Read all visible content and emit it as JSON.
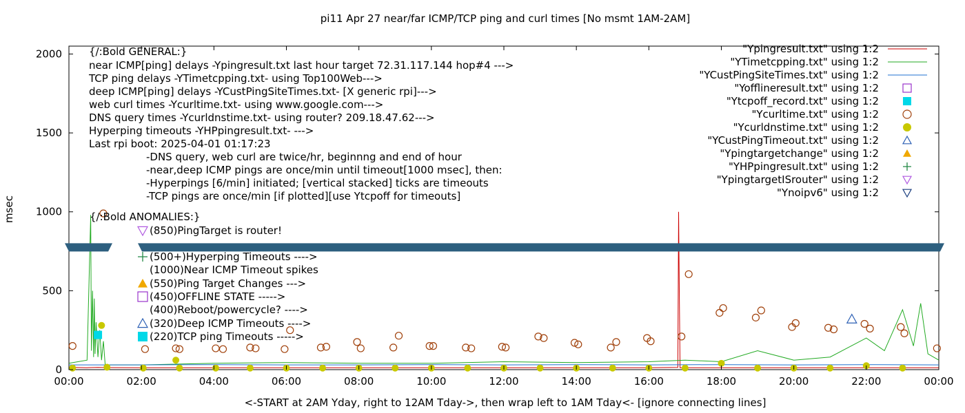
{
  "chart_data": {
    "type": "line",
    "title": "pi11 Apr 27  near/far ICMP/TCP ping and curl times [No msmt 1AM-2AM]",
    "xlabel": "<-START at 2AM Yday, right to 12AM Tday->, then wrap left to 1AM Tday<- [ignore connecting lines]",
    "ylabel": "msec",
    "xlim": [
      0,
      24
    ],
    "ylim": [
      0,
      2050
    ],
    "xticks": [
      {
        "v": 0,
        "label": "00:00"
      },
      {
        "v": 2,
        "label": "02:00"
      },
      {
        "v": 4,
        "label": "04:00"
      },
      {
        "v": 6,
        "label": "06:00"
      },
      {
        "v": 8,
        "label": "08:00"
      },
      {
        "v": 10,
        "label": "10:00"
      },
      {
        "v": 12,
        "label": "12:00"
      },
      {
        "v": 14,
        "label": "14:00"
      },
      {
        "v": 16,
        "label": "16:00"
      },
      {
        "v": 18,
        "label": "18:00"
      },
      {
        "v": 20,
        "label": "20:00"
      },
      {
        "v": 22,
        "label": "22:00"
      },
      {
        "v": 24,
        "label": "00:00"
      }
    ],
    "yticks": [
      {
        "v": 0,
        "label": "0"
      },
      {
        "v": 500,
        "label": "500"
      },
      {
        "v": 1000,
        "label": "1000"
      },
      {
        "v": 1500,
        "label": "1500"
      },
      {
        "v": 2000,
        "label": "2000"
      }
    ],
    "legend_position": "top-right",
    "legend": [
      {
        "label": "\"Ypingresult.txt\" using 1:2",
        "kind": "line",
        "color": "#cc0000"
      },
      {
        "label": "\"YTimetcpping.txt\" using 1:2",
        "kind": "line",
        "color": "#22aa22"
      },
      {
        "label": "\"YCustPingSiteTimes.txt\" using 1:2",
        "kind": "line",
        "color": "#1f6fd0"
      },
      {
        "label": "\"Yofflineresult.txt\" using 1:2",
        "kind": "open-square",
        "color": "#9933cc"
      },
      {
        "label": "\"Ytcpoff_record.txt\" using 1:2",
        "kind": "filled-square",
        "color": "#00d8e8"
      },
      {
        "label": "\"Ycurltime.txt\" using 1:2",
        "kind": "open-circle",
        "color": "#a0400a"
      },
      {
        "label": "\"Ycurldnstime.txt\" using 1:2",
        "kind": "filled-circle",
        "color": "#c8c800"
      },
      {
        "label": "\"YCustPingTimeout.txt\" using 1:2",
        "kind": "open-triangle-up",
        "color": "#2b5fb4"
      },
      {
        "label": "\"Ypingtargetchange\" using 1:2",
        "kind": "filled-triangle-up",
        "color": "#f0a800"
      },
      {
        "label": "\"YHPpingresult.txt\" using 1:2",
        "kind": "plus",
        "color": "#228844"
      },
      {
        "label": "\"YpingtargetISrouter\" using 1:2",
        "kind": "open-triangle-down",
        "color": "#b05ae0"
      },
      {
        "label": "\"Ynoipv6\" using 1:2",
        "kind": "open-triangle-down",
        "color": "#1c3f80"
      }
    ],
    "series": [
      {
        "name": "\"Ypingresult.txt\" using 1:2",
        "color": "#cc0000",
        "points": [
          [
            0,
            15
          ],
          [
            0.5,
            12
          ],
          [
            0.8,
            14
          ],
          [
            1.0,
            13
          ],
          [
            2,
            12
          ],
          [
            4,
            12
          ],
          [
            6,
            12
          ],
          [
            8,
            12
          ],
          [
            10,
            12
          ],
          [
            12,
            12
          ],
          [
            14,
            12
          ],
          [
            16,
            12
          ],
          [
            16.8,
            14
          ],
          [
            16.82,
            1000
          ],
          [
            16.84,
            500
          ],
          [
            16.86,
            12
          ],
          [
            18,
            12
          ],
          [
            20,
            12
          ],
          [
            22,
            12
          ],
          [
            24,
            12
          ]
        ]
      },
      {
        "name": "\"YTimetcpping.txt\" using 1:2",
        "color": "#22aa22",
        "points": [
          [
            0,
            40
          ],
          [
            0.5,
            60
          ],
          [
            0.6,
            980
          ],
          [
            0.62,
            120
          ],
          [
            0.65,
            500
          ],
          [
            0.68,
            80
          ],
          [
            0.7,
            450
          ],
          [
            0.72,
            100
          ],
          [
            0.75,
            300
          ],
          [
            0.8,
            80
          ],
          [
            0.85,
            250
          ],
          [
            0.9,
            60
          ],
          [
            0.95,
            180
          ],
          [
            1.0,
            30
          ],
          [
            2,
            30
          ],
          [
            4,
            40
          ],
          [
            6,
            45
          ],
          [
            8,
            40
          ],
          [
            10,
            40
          ],
          [
            12,
            50
          ],
          [
            14,
            45
          ],
          [
            16,
            50
          ],
          [
            17,
            60
          ],
          [
            18,
            50
          ],
          [
            19,
            120
          ],
          [
            20,
            60
          ],
          [
            21,
            80
          ],
          [
            22,
            200
          ],
          [
            22.5,
            120
          ],
          [
            23,
            380
          ],
          [
            23.3,
            150
          ],
          [
            23.5,
            420
          ],
          [
            23.7,
            100
          ],
          [
            24,
            60
          ]
        ]
      },
      {
        "name": "\"YCustPingSiteTimes.txt\" using 1:2",
        "color": "#1f6fd0",
        "points": [
          [
            0,
            30
          ],
          [
            2,
            30
          ],
          [
            4,
            32
          ],
          [
            6,
            30
          ],
          [
            8,
            30
          ],
          [
            10,
            32
          ],
          [
            12,
            30
          ],
          [
            14,
            32
          ],
          [
            16,
            30
          ],
          [
            18,
            32
          ],
          [
            20,
            30
          ],
          [
            22,
            32
          ],
          [
            24,
            30
          ]
        ]
      }
    ],
    "markers": {
      "Ycurltime": [
        [
          0.1,
          150
        ],
        [
          0.95,
          990
        ],
        [
          2.1,
          130
        ],
        [
          2.95,
          135
        ],
        [
          3.05,
          130
        ],
        [
          4.05,
          135
        ],
        [
          4.25,
          130
        ],
        [
          5.0,
          140
        ],
        [
          5.15,
          135
        ],
        [
          5.95,
          130
        ],
        [
          6.1,
          250
        ],
        [
          6.95,
          140
        ],
        [
          7.1,
          145
        ],
        [
          7.95,
          175
        ],
        [
          8.05,
          135
        ],
        [
          8.95,
          140
        ],
        [
          9.1,
          215
        ],
        [
          9.95,
          150
        ],
        [
          10.05,
          150
        ],
        [
          10.95,
          140
        ],
        [
          11.1,
          135
        ],
        [
          11.95,
          145
        ],
        [
          12.05,
          140
        ],
        [
          12.95,
          210
        ],
        [
          13.1,
          200
        ],
        [
          13.95,
          170
        ],
        [
          14.05,
          160
        ],
        [
          14.95,
          140
        ],
        [
          15.1,
          175
        ],
        [
          15.95,
          200
        ],
        [
          16.05,
          180
        ],
        [
          16.9,
          210
        ],
        [
          17.1,
          605
        ],
        [
          17.95,
          360
        ],
        [
          18.05,
          390
        ],
        [
          18.95,
          330
        ],
        [
          19.1,
          375
        ],
        [
          19.95,
          270
        ],
        [
          20.05,
          295
        ],
        [
          20.95,
          265
        ],
        [
          21.1,
          255
        ],
        [
          21.95,
          290
        ],
        [
          22.1,
          260
        ],
        [
          22.95,
          270
        ],
        [
          23.05,
          230
        ],
        [
          23.95,
          135
        ]
      ],
      "Ycurldnstime": [
        [
          0.1,
          10
        ],
        [
          0.9,
          280
        ],
        [
          1.05,
          15
        ],
        [
          2.05,
          10
        ],
        [
          2.95,
          60
        ],
        [
          3.05,
          10
        ],
        [
          4.05,
          10
        ],
        [
          5.0,
          10
        ],
        [
          6.0,
          10
        ],
        [
          7.0,
          10
        ],
        [
          8.0,
          10
        ],
        [
          9.0,
          10
        ],
        [
          10.0,
          10
        ],
        [
          11.0,
          10
        ],
        [
          12.0,
          10
        ],
        [
          13.0,
          10
        ],
        [
          14.0,
          10
        ],
        [
          15.0,
          10
        ],
        [
          16.0,
          10
        ],
        [
          17.0,
          10
        ],
        [
          18.0,
          40
        ],
        [
          19.0,
          10
        ],
        [
          20.0,
          10
        ],
        [
          21.0,
          10
        ],
        [
          22.0,
          25
        ],
        [
          23.0,
          10
        ]
      ],
      "Ytcpoff_record": [
        [
          0.8,
          220
        ]
      ],
      "YCustPingTimeout": [
        [
          21.6,
          320
        ]
      ]
    },
    "annotations": {
      "general_header": "{/:Bold GENERAL:}",
      "general_lines": [
        "near ICMP[ping] delays -Ypingresult.txt last hour target 72.31.117.144 hop#4 --->",
        "TCP ping delays -YTimetcpping.txt- using Top100Web--->",
        "deep ICMP[ping] delays -YCustPingSiteTimes.txt- [X generic rpi]--->",
        "web curl times -Ycurltime.txt- using www.google.com--->",
        "DNS query times -Ycurldnstime.txt- using router? 209.18.47.62--->",
        "Hyperping timeouts -YHPpingresult.txt- --->",
        "Last rpi boot: 2025-04-01 01:17:23"
      ],
      "notes": [
        "-DNS query, web curl are twice/hr, beginnng and end of hour",
        "-near,deep ICMP pings are once/min until timeout[1000 msec], then:",
        "  -Hyperpings [6/min] initiated; [vertical stacked] ticks are timeouts",
        "-TCP pings are once/min [if plotted][use Ytcpoff for timeouts]"
      ],
      "anomalies_header": "{/:Bold ANOMALIES:}",
      "anomalies": [
        {
          "text": "(850)PingTarget is router!",
          "kind": "open-triangle-down",
          "color": "#b05ae0"
        },
        {
          "text": "(500+)Hyperping Timeouts ---->",
          "kind": "plus",
          "color": "#228844"
        },
        {
          "text": "(1000)Near ICMP Timeout spikes",
          "kind": "none",
          "color": ""
        },
        {
          "text": "(550)Ping Target Changes --->",
          "kind": "filled-triangle-up",
          "color": "#f0a800"
        },
        {
          "text": "(450)OFFLINE STATE ----->",
          "kind": "open-square",
          "color": "#9933cc"
        },
        {
          "text": "(400)Reboot/powercycle? ---->",
          "kind": "none",
          "color": ""
        },
        {
          "text": "(320)Deep ICMP Timeouts ---->",
          "kind": "open-triangle-up",
          "color": "#2b5fb4"
        },
        {
          "text": "(220)TCP ping Timeouts ----->",
          "kind": "filled-square",
          "color": "#00d8e8"
        }
      ]
    },
    "band": {
      "y": 775,
      "color": "#2d5f7f"
    }
  }
}
